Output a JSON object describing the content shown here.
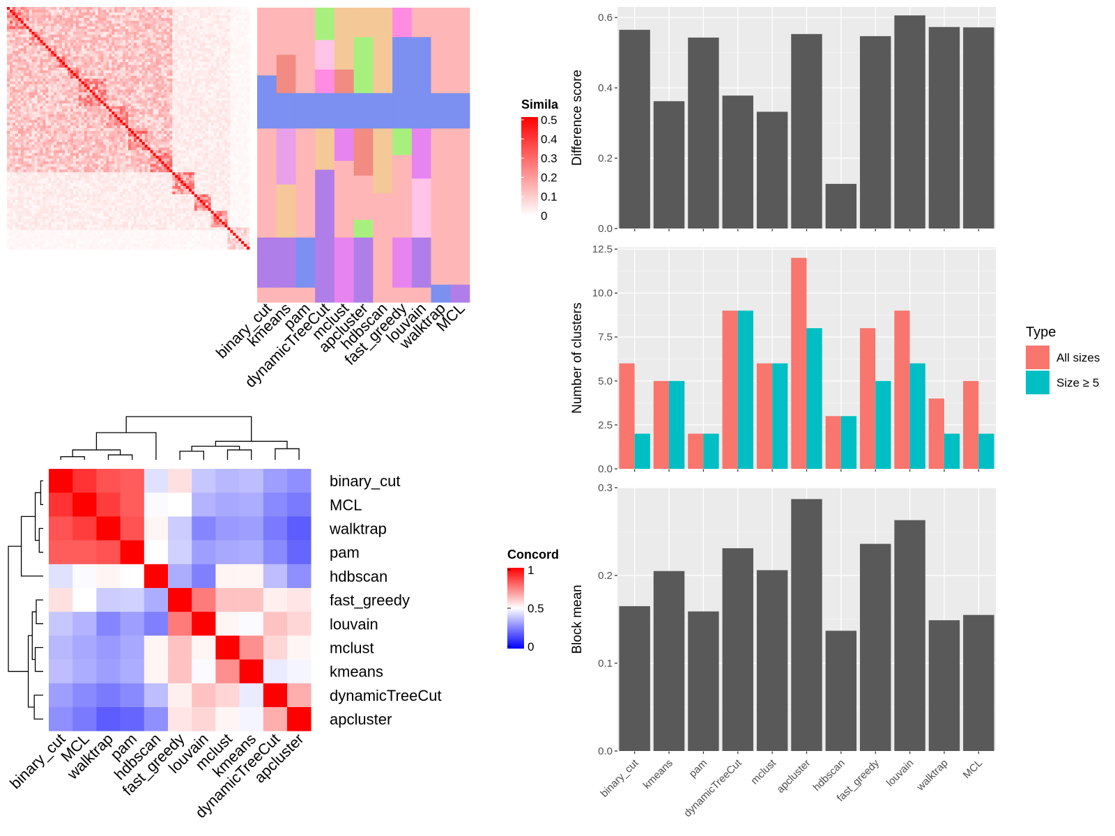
{
  "colors": {
    "panel_bg": "#ebebeb",
    "grid": "#ffffff",
    "bar": "#595959",
    "all_sizes": "#f8766d",
    "size_ge5": "#00bfc4",
    "sim_high": "#ff0000",
    "conc_low": "#0000ff",
    "conc_mid": "#ffffff",
    "conc_high": "#ff0000"
  },
  "similarity_legend": {
    "title": "Simila",
    "ticks": [
      "0.5",
      "0.4",
      "0.3",
      "0.2",
      "0.1",
      "0"
    ]
  },
  "concordance_legend": {
    "title": "Concord",
    "ticks": [
      "1",
      "0.5",
      "0"
    ]
  },
  "cluster_assignment_columns": [
    "binary_cut",
    "kmeans",
    "pam",
    "dynamicTreeCut",
    "mclust",
    "apcluster",
    "hdbscan",
    "fast_greedy",
    "louvain",
    "walktrap",
    "MCL"
  ],
  "chart_data": [
    {
      "type": "heatmap",
      "title": "",
      "description_scope": "term similarity matrix",
      "color_scale": {
        "min": 0,
        "max": 0.5
      }
    },
    {
      "type": "heatmap",
      "title": "",
      "x": [
        "binary_cut",
        "kmeans",
        "pam",
        "dynamicTreeCut",
        "mclust",
        "apcluster",
        "hdbscan",
        "fast_greedy",
        "louvain",
        "walktrap",
        "MCL"
      ]
    },
    {
      "type": "heatmap",
      "title": "",
      "rows": [
        "binary_cut",
        "MCL",
        "walktrap",
        "pam",
        "hdbscan",
        "fast_greedy",
        "louvain",
        "mclust",
        "kmeans",
        "dynamicTreeCut",
        "apcluster"
      ],
      "cols": [
        "binary_cut",
        "MCL",
        "walktrap",
        "pam",
        "hdbscan",
        "fast_greedy",
        "louvain",
        "mclust",
        "kmeans",
        "dynamicTreeCut",
        "apcluster"
      ],
      "values": [
        [
          1.0,
          0.9,
          0.84,
          0.82,
          0.44,
          0.56,
          0.39,
          0.36,
          0.37,
          0.31,
          0.28
        ],
        [
          0.9,
          1.0,
          0.88,
          0.82,
          0.49,
          0.5,
          0.35,
          0.33,
          0.34,
          0.27,
          0.24
        ],
        [
          0.84,
          0.88,
          1.0,
          0.84,
          0.52,
          0.4,
          0.26,
          0.3,
          0.31,
          0.24,
          0.18
        ],
        [
          0.82,
          0.82,
          0.84,
          1.0,
          0.5,
          0.41,
          0.31,
          0.33,
          0.34,
          0.27,
          0.2
        ],
        [
          0.44,
          0.49,
          0.52,
          0.5,
          1.0,
          0.34,
          0.25,
          0.52,
          0.52,
          0.37,
          0.28
        ],
        [
          0.56,
          0.5,
          0.4,
          0.41,
          0.34,
          1.0,
          0.76,
          0.62,
          0.62,
          0.53,
          0.55
        ],
        [
          0.39,
          0.35,
          0.26,
          0.31,
          0.25,
          0.76,
          1.0,
          0.52,
          0.49,
          0.62,
          0.58
        ],
        [
          0.36,
          0.33,
          0.3,
          0.33,
          0.52,
          0.62,
          0.52,
          1.0,
          0.72,
          0.58,
          0.52
        ],
        [
          0.37,
          0.34,
          0.31,
          0.34,
          0.52,
          0.62,
          0.49,
          0.72,
          1.0,
          0.46,
          0.48
        ],
        [
          0.31,
          0.27,
          0.24,
          0.27,
          0.37,
          0.53,
          0.62,
          0.58,
          0.46,
          1.0,
          0.66
        ],
        [
          0.28,
          0.24,
          0.18,
          0.2,
          0.28,
          0.55,
          0.58,
          0.52,
          0.48,
          0.66,
          1.0
        ]
      ],
      "color_scale": {
        "min": 0,
        "mid": 0.5,
        "max": 1
      }
    },
    {
      "type": "bar",
      "categories": [
        "binary_cut",
        "kmeans",
        "pam",
        "dynamicTreeCut",
        "mclust",
        "apcluster",
        "hdbscan",
        "fast_greedy",
        "louvain",
        "walktrap",
        "MCL"
      ],
      "values": [
        0.565,
        0.362,
        0.543,
        0.378,
        0.332,
        0.553,
        0.127,
        0.547,
        0.606,
        0.573,
        0.572
      ],
      "title": "",
      "xlabel": "",
      "ylabel": "Difference score",
      "ylim": [
        0,
        0.63
      ],
      "yticks": [
        "0.0",
        "0.2",
        "0.4",
        "0.6"
      ],
      "grid": true
    },
    {
      "type": "bar",
      "categories": [
        "binary_cut",
        "kmeans",
        "pam",
        "dynamicTreeCut",
        "mclust",
        "apcluster",
        "hdbscan",
        "fast_greedy",
        "louvain",
        "walktrap",
        "MCL"
      ],
      "series": [
        {
          "name": "All sizes",
          "values": [
            6,
            5,
            2,
            9,
            6,
            12,
            3,
            8,
            9,
            4,
            5
          ]
        },
        {
          "name": "Size ≥ 5",
          "values": [
            2,
            5,
            2,
            9,
            6,
            8,
            3,
            5,
            6,
            2,
            2
          ]
        }
      ],
      "title": "",
      "xlabel": "",
      "ylabel": "Number of clusters",
      "ylim": [
        0,
        12.6
      ],
      "yticks": [
        "0.0",
        "2.5",
        "5.0",
        "7.5",
        "10.0",
        "12.5"
      ],
      "grid": true,
      "legend": {
        "title": "Type",
        "placement": "right"
      }
    },
    {
      "type": "bar",
      "categories": [
        "binary_cut",
        "kmeans",
        "pam",
        "dynamicTreeCut",
        "mclust",
        "apcluster",
        "hdbscan",
        "fast_greedy",
        "louvain",
        "walktrap",
        "MCL"
      ],
      "values": [
        0.165,
        0.205,
        0.159,
        0.231,
        0.206,
        0.287,
        0.137,
        0.236,
        0.263,
        0.149,
        0.155
      ],
      "title": "",
      "xlabel": "",
      "ylabel": "Block mean",
      "ylim": [
        0,
        0.3
      ],
      "yticks": [
        "0.0",
        "0.1",
        "0.2",
        "0.3"
      ],
      "grid": true
    }
  ]
}
